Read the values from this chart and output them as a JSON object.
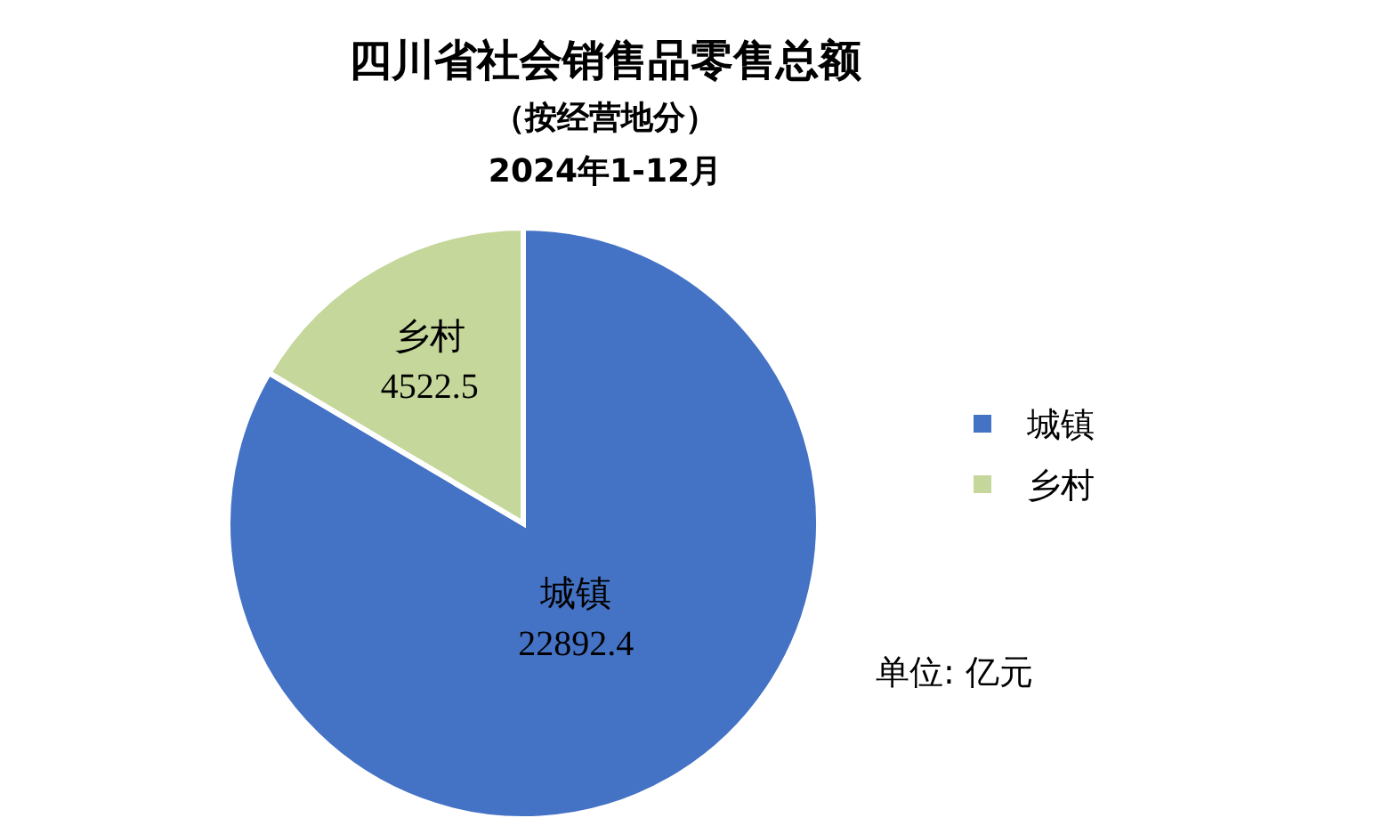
{
  "chart_data": {
    "type": "pie",
    "title": "四川省社会销售品零售总额",
    "subtitle": "（按经营地分）",
    "categories": [
      "城镇",
      "乡村"
    ],
    "values": [
      22892.4,
      4522.5
    ],
    "colors": [
      "#4472c4",
      "#c5d79a"
    ],
    "data_labels": true,
    "legend": "right",
    "annotations": [
      "2024年1-12月",
      "单位: 亿元"
    ]
  }
}
